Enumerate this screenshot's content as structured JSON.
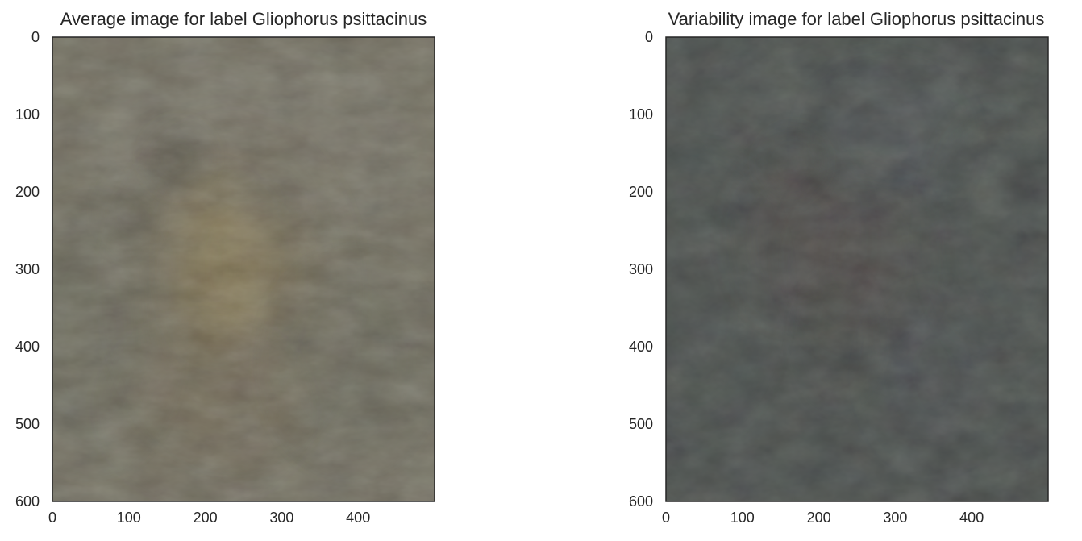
{
  "chart_data": [
    {
      "type": "heatmap",
      "title": "Average image for label Gliophorus psittacinus",
      "x_ticks": [
        0,
        100,
        200,
        300,
        400
      ],
      "y_ticks": [
        0,
        100,
        200,
        300,
        400,
        500,
        600
      ],
      "xlim": [
        0,
        500
      ],
      "ylim": [
        600,
        0
      ],
      "grid": false,
      "colors": {
        "base": "#6a6656",
        "dark_patch": "#3f3d30",
        "yellow_patch": "#8d7a46",
        "brown_patch": "#6b5c3f",
        "green_patch": "#4d5447",
        "light_patch": "#7f7e72"
      }
    },
    {
      "type": "heatmap",
      "title": "Variability image for label Gliophorus psittacinus",
      "x_ticks": [
        0,
        100,
        200,
        300,
        400
      ],
      "y_ticks": [
        0,
        100,
        200,
        300,
        400,
        500,
        600
      ],
      "xlim": [
        0,
        500
      ],
      "ylim": [
        600,
        0
      ],
      "grid": false,
      "colors": {
        "base": "#404542",
        "dark_patch": "#35332d",
        "red_patch": "#4f3d3a",
        "blue_patch": "#474a56",
        "green_patch": "#3f4a45",
        "light_patch": "#575d59"
      }
    }
  ]
}
